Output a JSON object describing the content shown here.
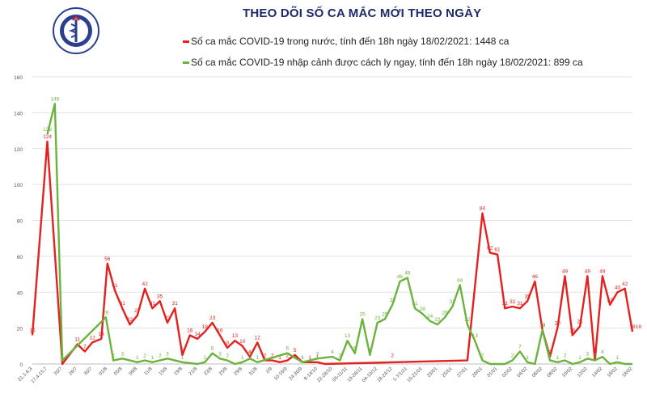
{
  "title": "THEO DÕI SỐ CA MẮC MỚI THEO NGÀY",
  "logo": {
    "text_top": "BỘ Y TẾ",
    "text_bottom": "MINISTRY OF HEALTH"
  },
  "colors": {
    "domestic": "#e3211f",
    "imported": "#6cb33e",
    "title": "#1f2a6b"
  },
  "chart_data": {
    "type": "line",
    "title": "THEO DÕI SỐ CA MẮC MỚI THEO NGÀY",
    "ylim": [
      0,
      160
    ],
    "yticks": [
      0,
      20,
      40,
      60,
      80,
      100,
      120,
      140,
      160
    ],
    "grid": true,
    "legend_position": "top",
    "xticks": [
      "21,1-6,3",
      "17,4-15,7",
      "20/7",
      "26/7",
      "30/7",
      "01/8",
      "05/8",
      "09/8",
      "11/8",
      "15/8",
      "19/8",
      "21/8",
      "23/8",
      "25/8",
      "29/8",
      "31/8",
      "2/9",
      "10-16/9",
      "24-30/9",
      "8-14/10",
      "22-28/10",
      "05-11/11",
      "19-26/11",
      "04-10/12",
      "18-24/12",
      "1-7/1/21",
      "15-21/01",
      "23/01",
      "25/01",
      "27/01",
      "29/01",
      "31/01",
      "02/02",
      "04/02",
      "06/02",
      "08/02",
      "10/02",
      "12/02",
      "14/02",
      "16/02",
      "18/02"
    ],
    "series": [
      {
        "name": "Số ca mắc COVID-19 trong nước, tính đến 18h ngày 18/02/2021: 1448 ca",
        "color": "#e3211f",
        "points": [
          {
            "x": 0,
            "y": 16
          },
          {
            "x": 1,
            "y": 124
          },
          {
            "x": 2,
            "y": 0
          },
          {
            "x": 3,
            "y": 11
          },
          {
            "x": 3.5,
            "y": 7
          },
          {
            "x": 4,
            "y": 12
          },
          {
            "x": 4.6,
            "y": 14
          },
          {
            "x": 5,
            "y": 56
          },
          {
            "x": 5.5,
            "y": 41
          },
          {
            "x": 6,
            "y": 31
          },
          {
            "x": 6.5,
            "y": 22
          },
          {
            "x": 7,
            "y": 27
          },
          {
            "x": 7.5,
            "y": 42
          },
          {
            "x": 8,
            "y": 31
          },
          {
            "x": 8.5,
            "y": 35
          },
          {
            "x": 9,
            "y": 23
          },
          {
            "x": 9.5,
            "y": 31
          },
          {
            "x": 10,
            "y": 5
          },
          {
            "x": 10.5,
            "y": 16
          },
          {
            "x": 11,
            "y": 14
          },
          {
            "x": 11.5,
            "y": 18
          },
          {
            "x": 12,
            "y": 23
          },
          {
            "x": 12.5,
            "y": 16
          },
          {
            "x": 13,
            "y": 9
          },
          {
            "x": 13.5,
            "y": 13
          },
          {
            "x": 14,
            "y": 10
          },
          {
            "x": 14.5,
            "y": 4
          },
          {
            "x": 15,
            "y": 12
          },
          {
            "x": 15.5,
            "y": 2
          },
          {
            "x": 16,
            "y": 2
          },
          {
            "x": 16.5,
            "y": 1
          },
          {
            "x": 17,
            "y": 2
          },
          {
            "x": 17.5,
            "y": 5
          },
          {
            "x": 18,
            "y": 1
          },
          {
            "x": 18.5,
            "y": 1
          },
          {
            "x": 19,
            "y": 1
          },
          {
            "x": 19.5,
            "y": 0
          },
          {
            "x": 29,
            "y": 2
          },
          {
            "x": 30,
            "y": 84
          },
          {
            "x": 30.5,
            "y": 62
          },
          {
            "x": 31,
            "y": 61
          },
          {
            "x": 31.5,
            "y": 31
          },
          {
            "x": 32,
            "y": 32
          },
          {
            "x": 32.5,
            "y": 31
          },
          {
            "x": 33,
            "y": 35
          },
          {
            "x": 33.5,
            "y": 46
          },
          {
            "x": 34,
            "y": 19
          },
          {
            "x": 34.5,
            "y": 4
          },
          {
            "x": 35,
            "y": 20
          },
          {
            "x": 35.5,
            "y": 49
          },
          {
            "x": 36,
            "y": 16
          },
          {
            "x": 36.5,
            "y": 21
          },
          {
            "x": 37,
            "y": 49
          },
          {
            "x": 37.5,
            "y": 2
          },
          {
            "x": 38,
            "y": 49
          },
          {
            "x": 38.5,
            "y": 33
          },
          {
            "x": 39,
            "y": 40
          },
          {
            "x": 39.5,
            "y": 42
          },
          {
            "x": 40,
            "y": 18
          }
        ],
        "labels": [
          {
            "x": 0,
            "y": 16,
            "t": "16"
          },
          {
            "x": 1,
            "y": 124,
            "t": "124"
          },
          {
            "x": 3,
            "y": 11,
            "t": "11"
          },
          {
            "x": 3.5,
            "y": 7,
            "t": "7"
          },
          {
            "x": 4,
            "y": 12,
            "t": "12"
          },
          {
            "x": 4.6,
            "y": 14,
            "t": "14"
          },
          {
            "x": 5,
            "y": 56,
            "t": "56"
          },
          {
            "x": 5.5,
            "y": 41,
            "t": "41"
          },
          {
            "x": 6,
            "y": 31,
            "t": "31"
          },
          {
            "x": 6.5,
            "y": 22,
            "t": "22"
          },
          {
            "x": 7,
            "y": 27,
            "t": "27"
          },
          {
            "x": 7.5,
            "y": 42,
            "t": "42"
          },
          {
            "x": 8,
            "y": 31,
            "t": "31"
          },
          {
            "x": 8.5,
            "y": 35,
            "t": "35"
          },
          {
            "x": 9,
            "y": 23,
            "t": "23"
          },
          {
            "x": 9.5,
            "y": 31,
            "t": "31"
          },
          {
            "x": 10,
            "y": 5,
            "t": "5"
          },
          {
            "x": 10.5,
            "y": 16,
            "t": "16"
          },
          {
            "x": 11,
            "y": 14,
            "t": "14"
          },
          {
            "x": 11.5,
            "y": 18,
            "t": "18"
          },
          {
            "x": 12,
            "y": 23,
            "t": "23"
          },
          {
            "x": 12.5,
            "y": 16,
            "t": "16"
          },
          {
            "x": 13,
            "y": 9,
            "t": "9"
          },
          {
            "x": 13.5,
            "y": 13,
            "t": "13"
          },
          {
            "x": 14,
            "y": 10,
            "t": "10"
          },
          {
            "x": 14.5,
            "y": 4,
            "t": "4"
          },
          {
            "x": 15,
            "y": 12,
            "t": "12"
          },
          {
            "x": 15.5,
            "y": 2,
            "t": "2"
          },
          {
            "x": 16,
            "y": 2,
            "t": "2"
          },
          {
            "x": 16.5,
            "y": 1,
            "t": "1"
          },
          {
            "x": 17,
            "y": 2,
            "t": "2"
          },
          {
            "x": 17.5,
            "y": 5,
            "t": "5"
          },
          {
            "x": 18,
            "y": 1,
            "t": "1"
          },
          {
            "x": 18.5,
            "y": 1,
            "t": "1"
          },
          {
            "x": 19,
            "y": 1,
            "t": "1"
          },
          {
            "x": 24,
            "y": 2,
            "t": "2"
          },
          {
            "x": 30,
            "y": 84,
            "t": "84"
          },
          {
            "x": 30.5,
            "y": 62,
            "t": "62"
          },
          {
            "x": 31,
            "y": 61,
            "t": "61"
          },
          {
            "x": 31.5,
            "y": 31,
            "t": "31"
          },
          {
            "x": 32,
            "y": 32,
            "t": "32"
          },
          {
            "x": 32.5,
            "y": 31,
            "t": "31"
          },
          {
            "x": 33,
            "y": 35,
            "t": "35"
          },
          {
            "x": 33.5,
            "y": 46,
            "t": "46"
          },
          {
            "x": 34,
            "y": 19,
            "t": "19"
          },
          {
            "x": 34.5,
            "y": 4,
            "t": "4"
          },
          {
            "x": 35,
            "y": 20,
            "t": "20"
          },
          {
            "x": 35.5,
            "y": 49,
            "t": "49"
          },
          {
            "x": 36,
            "y": 16,
            "t": "16"
          },
          {
            "x": 36.5,
            "y": 21,
            "t": "21"
          },
          {
            "x": 37,
            "y": 49,
            "t": "49"
          },
          {
            "x": 37.5,
            "y": 2,
            "t": "2"
          },
          {
            "x": 38,
            "y": 49,
            "t": "49"
          },
          {
            "x": 38.5,
            "y": 33,
            "t": "33"
          },
          {
            "x": 39,
            "y": 40,
            "t": "40"
          },
          {
            "x": 39.5,
            "y": 42,
            "t": "42"
          },
          {
            "x": 40,
            "y": 18,
            "t": "18"
          },
          {
            "x": 40.4,
            "y": 18,
            "t": "18"
          }
        ]
      },
      {
        "name": "Số ca mắc COVID-19 nhập cảnh được cách ly ngay, tính đến 18h ngày 18/02/2021: 899 ca",
        "color": "#6cb33e",
        "points": [
          {
            "x": 1,
            "y": 128
          },
          {
            "x": 1.5,
            "y": 145
          },
          {
            "x": 2,
            "y": 2
          },
          {
            "x": 4.9,
            "y": 26
          },
          {
            "x": 5.4,
            "y": 2
          },
          {
            "x": 6,
            "y": 3
          },
          {
            "x": 7,
            "y": 1
          },
          {
            "x": 7.5,
            "y": 2
          },
          {
            "x": 8,
            "y": 1
          },
          {
            "x": 8.5,
            "y": 2
          },
          {
            "x": 9,
            "y": 3
          },
          {
            "x": 10,
            "y": 1
          },
          {
            "x": 11,
            "y": 0
          },
          {
            "x": 11.5,
            "y": 1
          },
          {
            "x": 12,
            "y": 6
          },
          {
            "x": 12.5,
            "y": 3
          },
          {
            "x": 13,
            "y": 2
          },
          {
            "x": 13.5,
            "y": 0
          },
          {
            "x": 14,
            "y": 1
          },
          {
            "x": 14.5,
            "y": 3
          },
          {
            "x": 15,
            "y": 1
          },
          {
            "x": 17,
            "y": 6
          },
          {
            "x": 18,
            "y": 1
          },
          {
            "x": 19,
            "y": 3
          },
          {
            "x": 20,
            "y": 4
          },
          {
            "x": 20.5,
            "y": 2
          },
          {
            "x": 21,
            "y": 13
          },
          {
            "x": 21.5,
            "y": 6
          },
          {
            "x": 22,
            "y": 25
          },
          {
            "x": 22.5,
            "y": 5
          },
          {
            "x": 23,
            "y": 23
          },
          {
            "x": 23.5,
            "y": 25
          },
          {
            "x": 24,
            "y": 33
          },
          {
            "x": 24.5,
            "y": 46
          },
          {
            "x": 25,
            "y": 48
          },
          {
            "x": 25.5,
            "y": 31
          },
          {
            "x": 26,
            "y": 28
          },
          {
            "x": 26.5,
            "y": 24
          },
          {
            "x": 27,
            "y": 22
          },
          {
            "x": 27.5,
            "y": 26
          },
          {
            "x": 28,
            "y": 32
          },
          {
            "x": 28.5,
            "y": 44
          },
          {
            "x": 29,
            "y": 22
          },
          {
            "x": 29.5,
            "y": 13
          },
          {
            "x": 30,
            "y": 2
          },
          {
            "x": 30.5,
            "y": 0
          },
          {
            "x": 31,
            "y": 0
          },
          {
            "x": 31.5,
            "y": 0
          },
          {
            "x": 32,
            "y": 2
          },
          {
            "x": 32.5,
            "y": 7
          },
          {
            "x": 33,
            "y": 1
          },
          {
            "x": 33.5,
            "y": 0
          },
          {
            "x": 34,
            "y": 19
          },
          {
            "x": 34.5,
            "y": 2
          },
          {
            "x": 35,
            "y": 1
          },
          {
            "x": 35.5,
            "y": 2
          },
          {
            "x": 36,
            "y": 0
          },
          {
            "x": 36.5,
            "y": 1
          },
          {
            "x": 37,
            "y": 3
          },
          {
            "x": 37.5,
            "y": 2
          },
          {
            "x": 38,
            "y": 4
          },
          {
            "x": 38.5,
            "y": 0
          },
          {
            "x": 39,
            "y": 1
          },
          {
            "x": 39.5,
            "y": 0
          },
          {
            "x": 40,
            "y": 0
          }
        ],
        "labels": [
          {
            "x": 1,
            "y": 128,
            "t": "128"
          },
          {
            "x": 1.5,
            "y": 145,
            "t": "145"
          },
          {
            "x": 2,
            "y": 2,
            "t": "2"
          },
          {
            "x": 4.9,
            "y": 26,
            "t": "26"
          },
          {
            "x": 5.4,
            "y": 2,
            "t": "2"
          },
          {
            "x": 6,
            "y": 3,
            "t": "3"
          },
          {
            "x": 7,
            "y": 1,
            "t": "1"
          },
          {
            "x": 7.5,
            "y": 2,
            "t": "2"
          },
          {
            "x": 8,
            "y": 1,
            "t": "1"
          },
          {
            "x": 8.5,
            "y": 2,
            "t": "2"
          },
          {
            "x": 9,
            "y": 3,
            "t": "3"
          },
          {
            "x": 10,
            "y": 1,
            "t": "1"
          },
          {
            "x": 11.5,
            "y": 1,
            "t": "1"
          },
          {
            "x": 12,
            "y": 6,
            "t": "6"
          },
          {
            "x": 12.5,
            "y": 3,
            "t": "3"
          },
          {
            "x": 13,
            "y": 2,
            "t": "2"
          },
          {
            "x": 14,
            "y": 1,
            "t": "1"
          },
          {
            "x": 14.5,
            "y": 3,
            "t": "3"
          },
          {
            "x": 15,
            "y": 1,
            "t": "1"
          },
          {
            "x": 17,
            "y": 6,
            "t": "6"
          },
          {
            "x": 18,
            "y": 1,
            "t": "1"
          },
          {
            "x": 19,
            "y": 3,
            "t": "3"
          },
          {
            "x": 20,
            "y": 4,
            "t": "4"
          },
          {
            "x": 20.5,
            "y": 2,
            "t": "2"
          },
          {
            "x": 21,
            "y": 13,
            "t": "13"
          },
          {
            "x": 21.5,
            "y": 6,
            "t": "6"
          },
          {
            "x": 22,
            "y": 25,
            "t": "25"
          },
          {
            "x": 22.5,
            "y": 5,
            "t": "5"
          },
          {
            "x": 23,
            "y": 23,
            "t": "23"
          },
          {
            "x": 23.5,
            "y": 25,
            "t": "25"
          },
          {
            "x": 24,
            "y": 33,
            "t": "33"
          },
          {
            "x": 24.5,
            "y": 46,
            "t": "46"
          },
          {
            "x": 25,
            "y": 48,
            "t": "48"
          },
          {
            "x": 25.5,
            "y": 31,
            "t": "31"
          },
          {
            "x": 26,
            "y": 28,
            "t": "28"
          },
          {
            "x": 26.5,
            "y": 24,
            "t": "24"
          },
          {
            "x": 27,
            "y": 22,
            "t": "22"
          },
          {
            "x": 27.5,
            "y": 26,
            "t": "26"
          },
          {
            "x": 28,
            "y": 32,
            "t": "32"
          },
          {
            "x": 28.5,
            "y": 44,
            "t": "44"
          },
          {
            "x": 29,
            "y": 22,
            "t": "22"
          },
          {
            "x": 29.5,
            "y": 13,
            "t": "13"
          },
          {
            "x": 30,
            "y": 2,
            "t": "2"
          },
          {
            "x": 32,
            "y": 2,
            "t": "2"
          },
          {
            "x": 32.5,
            "y": 7,
            "t": "7"
          },
          {
            "x": 33,
            "y": 1,
            "t": "1"
          },
          {
            "x": 34,
            "y": 19,
            "t": "19"
          },
          {
            "x": 34.5,
            "y": 2,
            "t": "2"
          },
          {
            "x": 35,
            "y": 1,
            "t": "1"
          },
          {
            "x": 35.5,
            "y": 2,
            "t": "2"
          },
          {
            "x": 36.5,
            "y": 1,
            "t": "1"
          },
          {
            "x": 37,
            "y": 3,
            "t": "3"
          },
          {
            "x": 37.5,
            "y": 2,
            "t": "2"
          },
          {
            "x": 38,
            "y": 4,
            "t": "4"
          },
          {
            "x": 39,
            "y": 1,
            "t": "1"
          }
        ]
      }
    ]
  }
}
